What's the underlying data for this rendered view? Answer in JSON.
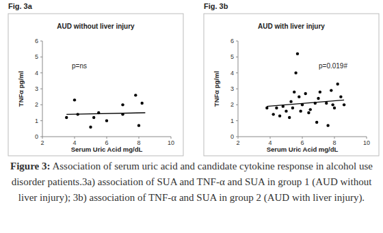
{
  "chart_data": [
    {
      "type": "scatter",
      "label": "Fig. 3a",
      "title": "AUD without liver injury",
      "x_label": "Serum Uric Acid mg/dL",
      "y_label": "TNFα pg/ml",
      "annotations": [
        "p=ns"
      ],
      "xlim": [
        2,
        10
      ],
      "xticks": [
        2,
        4,
        6,
        8,
        10
      ],
      "ylim": [
        0,
        6
      ],
      "yticks": [
        0,
        1,
        2,
        3,
        4,
        5,
        6
      ],
      "grid": false,
      "series": [
        {
          "type": "scatter",
          "marker": "circle",
          "color": "#000000",
          "x": [
            3.5,
            4.0,
            4.2,
            5.0,
            5.2,
            5.5,
            6.0,
            7.0,
            7.0,
            7.8,
            8.0,
            8.2
          ],
          "values": [
            1.2,
            2.3,
            1.4,
            0.6,
            1.2,
            1.5,
            1.0,
            1.4,
            2.0,
            2.6,
            0.7,
            2.1
          ]
        },
        {
          "type": "line",
          "line_style": "solid",
          "color": "#000000",
          "x": [
            3.5,
            8.4
          ],
          "values": [
            1.4,
            1.5
          ]
        }
      ]
    },
    {
      "type": "scatter",
      "label": "Fig. 3b",
      "title": "AUD with liver injury",
      "x_label": "Serum Uric Acid mg/dL",
      "y_label": "TNFα pg/ml",
      "annotations": [
        "p=0.019#"
      ],
      "xlim": [
        2,
        10
      ],
      "xticks": [
        2,
        4,
        6,
        8,
        10
      ],
      "ylim": [
        0,
        6
      ],
      "yticks": [
        0,
        1,
        2,
        3,
        4,
        5,
        6
      ],
      "grid": false,
      "series": [
        {
          "type": "scatter",
          "marker": "circle",
          "color": "#000000",
          "x": [
            3.8,
            4.2,
            4.4,
            4.6,
            4.8,
            5.0,
            5.2,
            5.3,
            5.4,
            5.5,
            5.6,
            5.7,
            5.8,
            5.9,
            6.0,
            6.2,
            6.4,
            6.5,
            6.8,
            6.9,
            7.0,
            7.1,
            7.5,
            7.6,
            7.8,
            7.9,
            8.0,
            8.2,
            8.4,
            8.6
          ],
          "values": [
            1.8,
            1.4,
            1.8,
            1.3,
            1.9,
            1.6,
            1.2,
            2.2,
            1.8,
            2.8,
            4.0,
            5.2,
            2.5,
            1.6,
            2.0,
            2.7,
            1.5,
            1.7,
            2.1,
            0.9,
            2.4,
            2.8,
            2.1,
            0.7,
            2.9,
            2.0,
            1.8,
            3.3,
            2.5,
            2.0
          ]
        },
        {
          "type": "line",
          "line_style": "solid",
          "color": "#000000",
          "x": [
            3.8,
            8.6
          ],
          "values": [
            1.9,
            2.3
          ]
        }
      ]
    }
  ],
  "caption": {
    "label": "Figure 3:",
    "text": "Association of serum uric acid and candidate cytokine response in alcohol use disorder patients.3a) association of SUA and TNF-α and SUA in group 1 (AUD without liver injury); 3b) association of TNF-α and SUA in group 2 (AUD with liver injury)."
  }
}
